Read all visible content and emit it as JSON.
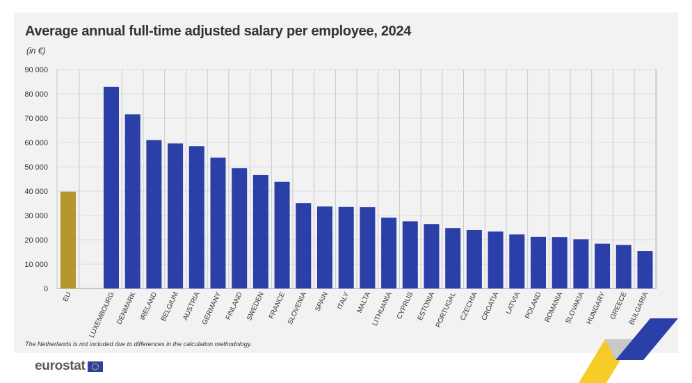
{
  "colors": {
    "panel_bg": "#f2f2f2",
    "bar": "#2a3fa8",
    "eu_bar": "#b8962e",
    "grid": "#c8c8c8",
    "text": "#333333"
  },
  "footnote": "The Netherlands is not included due to differences in the calculation methodology.",
  "logo": {
    "text": "eurostat",
    "icon": "eu-flag-icon"
  },
  "chart_data": {
    "type": "bar",
    "title": "Average annual full-time adjusted salary per employee, 2024",
    "unit_label": "(in €)",
    "ylim": [
      0,
      90000
    ],
    "y_ticks": [
      0,
      10000,
      20000,
      30000,
      40000,
      50000,
      60000,
      70000,
      80000,
      90000
    ],
    "y_tick_labels": [
      "0",
      "10 000",
      "20 000",
      "30 000",
      "40 000",
      "50 000",
      "60 000",
      "70 000",
      "80 000",
      "90 000"
    ],
    "grid": true,
    "highlight_category": "EU",
    "categories": [
      "EU",
      "LUXEMBOURG",
      "DENMARK",
      "IRELAND",
      "BELGIUM",
      "AUSTRIA",
      "GERMANY",
      "FINLAND",
      "SWEDEN",
      "FRANCE",
      "SLOVENIA",
      "SPAIN",
      "ITALY",
      "MALTA",
      "LITHUANIA",
      "CYPRUS",
      "ESTONIA",
      "PORTUGAL",
      "CZECHIA",
      "CROATIA",
      "LATVIA",
      "POLAND",
      "ROMANIA",
      "SLOVAKIA",
      "HUNGARY",
      "GREECE",
      "BULGARIA"
    ],
    "values": [
      39800,
      82900,
      71600,
      61000,
      59600,
      58500,
      53800,
      49400,
      46600,
      43800,
      35100,
      33700,
      33500,
      33400,
      29100,
      27600,
      26500,
      24800,
      24000,
      23400,
      22200,
      21200,
      21100,
      20200,
      18400,
      17900,
      15400
    ]
  }
}
